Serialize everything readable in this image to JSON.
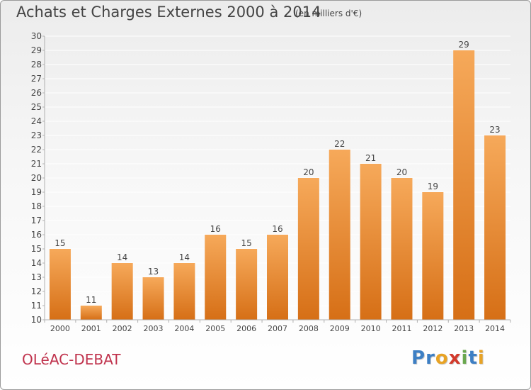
{
  "header": {
    "title": "Achats et Charges Externes 2000 à 2014",
    "unit_note": "(en milliers d'€)"
  },
  "footer": {
    "commune": "OLéAC-DEBAT",
    "brand": "Proxiti",
    "brand_letters": [
      "P",
      "r",
      "o",
      "x",
      "i",
      "t",
      "i"
    ],
    "brand_colors": [
      "#3d7fc4",
      "#3d7fc4",
      "#e8a325",
      "#d23a2c",
      "#6aa84f",
      "#3d7fc4",
      "#e8a325"
    ]
  },
  "chart_data": {
    "type": "bar",
    "title": "Achats et Charges Externes 2000 à 2014",
    "subtitle": "(en milliers d'€)",
    "xlabel": "",
    "ylabel": "",
    "categories": [
      "2000",
      "2001",
      "2002",
      "2003",
      "2004",
      "2005",
      "2006",
      "2007",
      "2008",
      "2009",
      "2010",
      "2011",
      "2012",
      "2013",
      "2014"
    ],
    "values": [
      15,
      11,
      14,
      13,
      14,
      16,
      15,
      16,
      20,
      22,
      21,
      20,
      19,
      29,
      23
    ],
    "ylim": [
      10,
      30
    ],
    "yticks": [
      "10",
      "11",
      "12",
      "13",
      "14",
      "15",
      "16",
      "17",
      "18",
      "19",
      "20",
      "21",
      "22",
      "23",
      "24",
      "25",
      "26",
      "27",
      "28",
      "29",
      "30"
    ],
    "data_labels": [
      "15",
      "11",
      "14",
      "13",
      "14",
      "16",
      "15",
      "16",
      "20",
      "22",
      "21",
      "20",
      "19",
      "29",
      "23"
    ],
    "grid": true,
    "legend": "none",
    "colors": {
      "bar_top": "#f6a95a",
      "bar_bottom": "#d66f16",
      "grid": "#ffffff",
      "axis": "#b0b0b0",
      "text": "#444444"
    }
  }
}
